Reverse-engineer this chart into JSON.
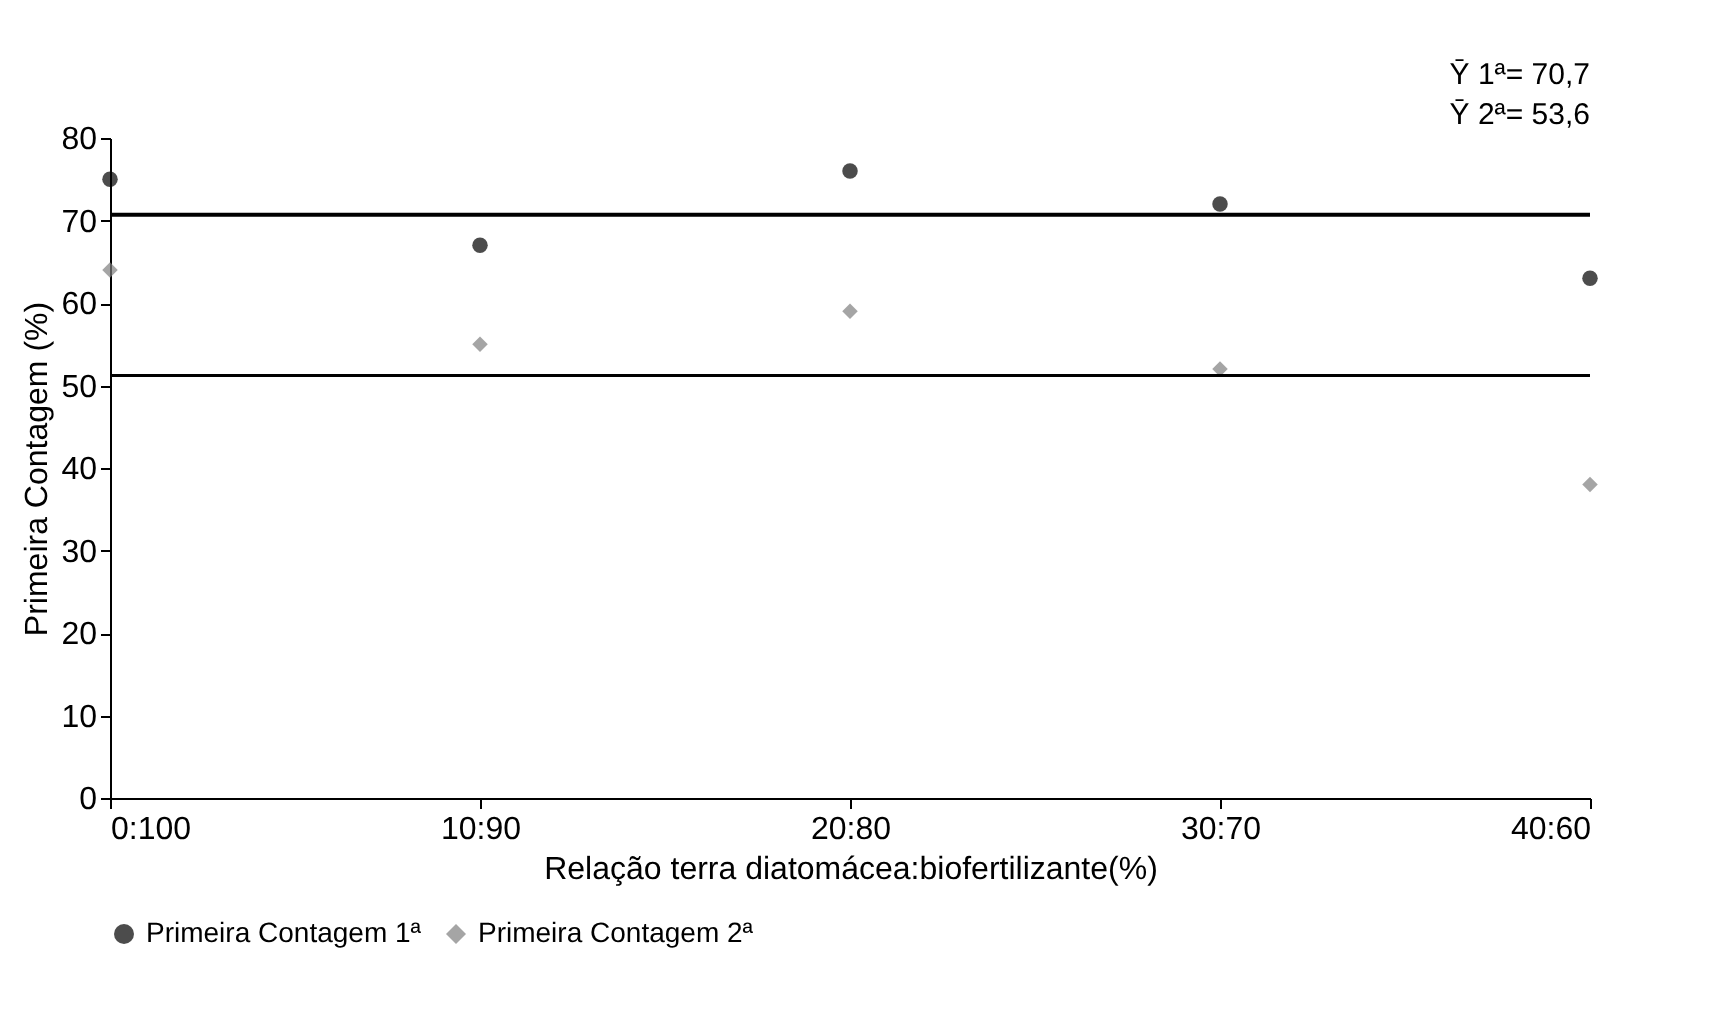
{
  "chart_data": {
    "type": "scatter",
    "xlabel": "Relação terra diatomácea:biofertilizante(%)",
    "ylabel": "Primeira Contagem (%)",
    "categories": [
      "0:100",
      "10:90",
      "20:80",
      "30:70",
      "40:60"
    ],
    "series": [
      {
        "name": "Primeira Contagem 1ª",
        "color": "#000000",
        "marker": "circle",
        "values": [
          75,
          67,
          76,
          72,
          63
        ]
      },
      {
        "name": "Primeira Contagem 2ª",
        "color": "#7f7f7f",
        "marker": "diamond",
        "values": [
          64,
          55,
          59,
          52,
          38
        ]
      }
    ],
    "ylim": [
      0,
      80
    ],
    "yticks": [
      0,
      10,
      20,
      30,
      40,
      50,
      60,
      70,
      80
    ],
    "ref_lines": [
      {
        "axis": "y",
        "value": 70.7,
        "color": "#000000"
      },
      {
        "axis": "y",
        "value": 51.2,
        "color": "#000000"
      }
    ],
    "annotations": [
      "Ȳ 1ª= 70,7",
      "Ȳ 2ª= 53,6"
    ],
    "grid": false,
    "legend": "bottom"
  }
}
